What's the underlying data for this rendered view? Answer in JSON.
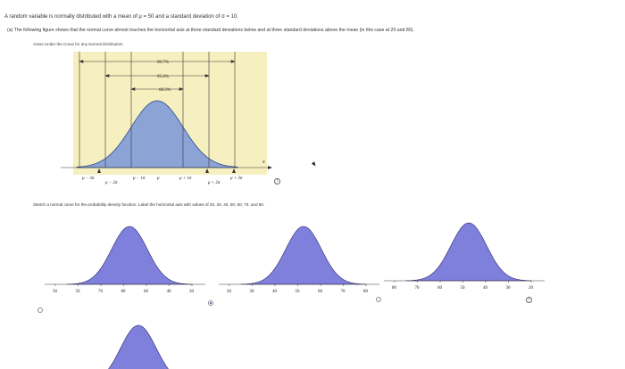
{
  "header": {
    "intro_prefix": "A random variable is normally distributed with a mean of μ = 50 and a standard deviation of σ = 10.",
    "part_a": "(a)  The following figure shows that the normal curve almost touches the horizontal axis at three standard deviations below and at three standard deviations above the mean (in this case at 20 and 80).",
    "figure_caption": "Areas Under the Curve for any Normal Distribution"
  },
  "figure": {
    "pct_997": "99.7%",
    "pct_954": "95.4%",
    "pct_683": "68.3%",
    "labels": [
      "μ − 3σ",
      "μ − 2σ",
      "μ − 1σ",
      "μ",
      "μ + 1σ",
      "μ + 2σ",
      "μ + 3σ"
    ],
    "x_axis": "x",
    "fill": "#8ca3d6",
    "bg": "#f6f0c0"
  },
  "sketch_prompt": "Sketch a normal curve for the probability density function. Label the horizontal axis with values of 20, 30, 40, 50, 60, 70, and 80.",
  "options": [
    {
      "id": "A",
      "ticks": [
        "30",
        "50",
        "70",
        "80",
        "60",
        "40",
        "20"
      ]
    },
    {
      "id": "B",
      "ticks": [
        "20",
        "30",
        "40",
        "50",
        "60",
        "70",
        "80"
      ]
    },
    {
      "id": "C",
      "ticks": [
        "80",
        "70",
        "60",
        "50",
        "40",
        "30",
        "20"
      ]
    }
  ],
  "colors": {
    "curve_fill": "#7f7fdc",
    "curve_stroke": "#2a2a6a"
  },
  "icons": {
    "info": "i"
  }
}
